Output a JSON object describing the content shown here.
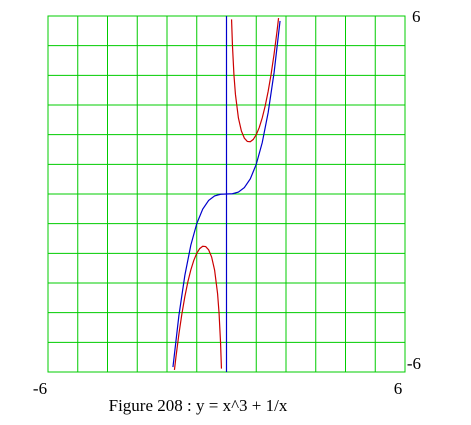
{
  "chart_data": {
    "type": "line",
    "caption": "Figure 208 : y = x^3 + 1/x",
    "xlim": [
      -6,
      6
    ],
    "ylim": [
      -6,
      6
    ],
    "xticks": [
      -6,
      6
    ],
    "yticks": [
      -6,
      6
    ],
    "xgrid": [
      -5,
      -4,
      -3,
      -2,
      -1,
      0,
      1,
      2,
      3,
      4,
      5
    ],
    "ygrid": [
      -5,
      -4,
      -3,
      -2,
      -1,
      0,
      1,
      2,
      3,
      4,
      5
    ],
    "grid_color": "#00cc00",
    "series": [
      {
        "color": "#cc0000",
        "x": [
          -1.75,
          -1.7,
          -1.6,
          -1.5,
          -1.4,
          -1.3,
          -1.2,
          -1.1,
          -1.0,
          -0.9,
          -0.8,
          -0.7,
          -0.6,
          -0.5,
          -0.4,
          -0.3,
          -0.25,
          -0.2,
          -0.17,
          0,
          0.17,
          0.2,
          0.25,
          0.3,
          0.4,
          0.5,
          0.6,
          0.7,
          0.8,
          0.9,
          1.0,
          1.1,
          1.2,
          1.3,
          1.4,
          1.5,
          1.6,
          1.7,
          1.75
        ],
        "values": [
          -5.93,
          -5.501,
          -4.721,
          -4.042,
          -3.458,
          -2.966,
          -2.561,
          -2.24,
          -2,
          -1.84,
          -1.762,
          -1.772,
          -1.883,
          -2.125,
          -2.564,
          -3.36,
          -4.016,
          -5.008,
          -5.887,
          null,
          5.887,
          5.008,
          4.016,
          3.36,
          2.564,
          2.125,
          1.883,
          1.772,
          1.762,
          1.84,
          2,
          2.24,
          2.561,
          2.966,
          3.458,
          4.042,
          4.721,
          5.501,
          5.93
        ]
      },
      {
        "color": "#0000cc",
        "x": [
          -1.8,
          -1.6,
          -1.4,
          -1.2,
          -1.0,
          -0.8,
          -0.6,
          -0.4,
          -0.2,
          0,
          0.2,
          0.4,
          0.6,
          0.8,
          1.0,
          1.2,
          1.4,
          1.6,
          1.8
        ],
        "values": [
          -5.832,
          -4.096,
          -2.744,
          -1.728,
          -1,
          -0.512,
          -0.216,
          -0.064,
          -0.008,
          0,
          0.008,
          0.064,
          0.216,
          0.512,
          1,
          1.728,
          2.744,
          4.096,
          5.832
        ]
      },
      {
        "color": "#0000cc",
        "x": [
          0,
          0
        ],
        "values": [
          -6,
          6
        ]
      }
    ]
  }
}
